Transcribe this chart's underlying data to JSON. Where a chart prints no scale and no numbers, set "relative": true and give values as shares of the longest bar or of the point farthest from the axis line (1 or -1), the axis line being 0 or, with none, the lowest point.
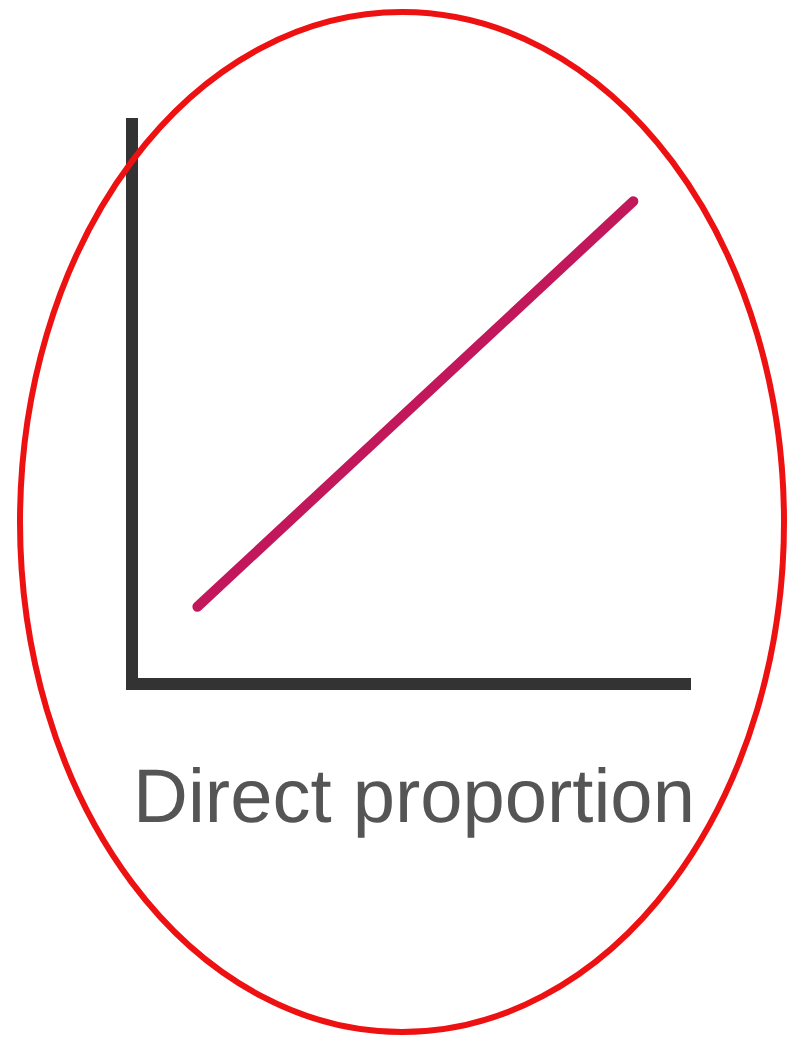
{
  "chart_data": {
    "type": "line",
    "title": "Direct proportion",
    "relative": true,
    "categories": [
      null,
      null
    ],
    "series": [
      {
        "color": "#c2185b",
        "values": [
          0.16,
          1
        ]
      }
    ],
    "grid": false,
    "legend": false
  }
}
